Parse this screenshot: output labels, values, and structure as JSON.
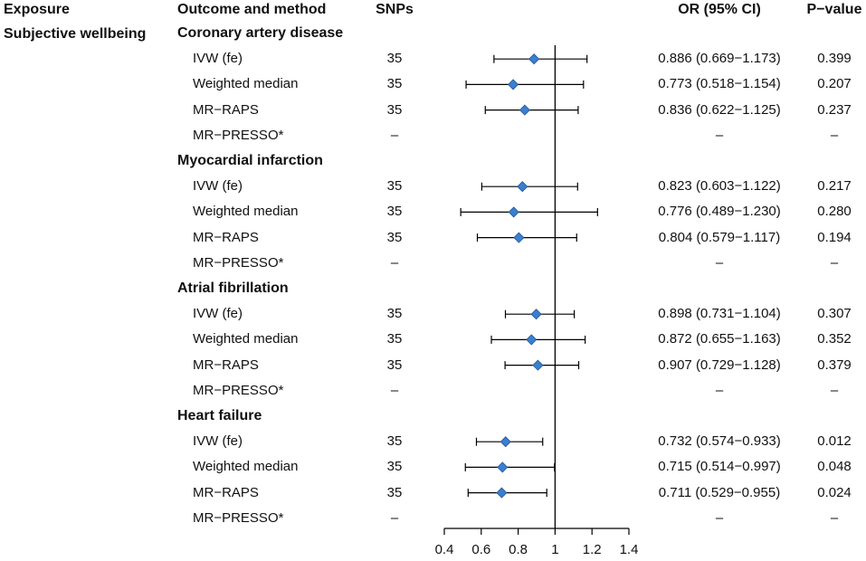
{
  "headers": {
    "exposure": "Exposure",
    "outcome": "Outcome and method",
    "snps": "SNPs",
    "or": "OR (95% CI)",
    "pvalue": "P−value"
  },
  "exposure": "Subjective wellbeing",
  "chart_data": {
    "type": "forest",
    "xlim": [
      0.4,
      1.4
    ],
    "reference_line": 1,
    "x_ticks": [
      "0.4",
      "0.6",
      "0.8",
      "1",
      "1.2",
      "1.4"
    ],
    "groups": [
      {
        "outcome": "Coronary artery disease",
        "rows": [
          {
            "method": "IVW (fe)",
            "snps": "35",
            "or": 0.886,
            "lo": 0.669,
            "hi": 1.173,
            "or_text": "0.886 (0.669−1.173)",
            "p": "0.399"
          },
          {
            "method": "Weighted median",
            "snps": "35",
            "or": 0.773,
            "lo": 0.518,
            "hi": 1.154,
            "or_text": "0.773 (0.518−1.154)",
            "p": "0.207"
          },
          {
            "method": "MR−RAPS",
            "snps": "35",
            "or": 0.836,
            "lo": 0.622,
            "hi": 1.125,
            "or_text": "0.836 (0.622−1.125)",
            "p": "0.237"
          },
          {
            "method": "MR−PRESSO*",
            "snps": "–",
            "or": null,
            "lo": null,
            "hi": null,
            "or_text": "–",
            "p": "–"
          }
        ]
      },
      {
        "outcome": "Myocardial infarction",
        "rows": [
          {
            "method": "IVW (fe)",
            "snps": "35",
            "or": 0.823,
            "lo": 0.603,
            "hi": 1.122,
            "or_text": "0.823 (0.603−1.122)",
            "p": "0.217"
          },
          {
            "method": "Weighted median",
            "snps": "35",
            "or": 0.776,
            "lo": 0.489,
            "hi": 1.23,
            "or_text": "0.776 (0.489−1.230)",
            "p": "0.280"
          },
          {
            "method": "MR−RAPS",
            "snps": "35",
            "or": 0.804,
            "lo": 0.579,
            "hi": 1.117,
            "or_text": "0.804 (0.579−1.117)",
            "p": "0.194"
          },
          {
            "method": "MR−PRESSO*",
            "snps": "–",
            "or": null,
            "lo": null,
            "hi": null,
            "or_text": "–",
            "p": "–"
          }
        ]
      },
      {
        "outcome": "Atrial fibrillation",
        "rows": [
          {
            "method": "IVW (fe)",
            "snps": "35",
            "or": 0.898,
            "lo": 0.731,
            "hi": 1.104,
            "or_text": "0.898 (0.731−1.104)",
            "p": "0.307"
          },
          {
            "method": "Weighted median",
            "snps": "35",
            "or": 0.872,
            "lo": 0.655,
            "hi": 1.163,
            "or_text": "0.872 (0.655−1.163)",
            "p": "0.352"
          },
          {
            "method": "MR−RAPS",
            "snps": "35",
            "or": 0.907,
            "lo": 0.729,
            "hi": 1.128,
            "or_text": "0.907 (0.729−1.128)",
            "p": "0.379"
          },
          {
            "method": "MR−PRESSO*",
            "snps": "–",
            "or": null,
            "lo": null,
            "hi": null,
            "or_text": "–",
            "p": "–"
          }
        ]
      },
      {
        "outcome": "Heart failure",
        "rows": [
          {
            "method": "IVW (fe)",
            "snps": "35",
            "or": 0.732,
            "lo": 0.574,
            "hi": 0.933,
            "or_text": "0.732 (0.574−0.933)",
            "p": "0.012"
          },
          {
            "method": "Weighted median",
            "snps": "35",
            "or": 0.715,
            "lo": 0.514,
            "hi": 0.997,
            "or_text": "0.715 (0.514−0.997)",
            "p": "0.048"
          },
          {
            "method": "MR−RAPS",
            "snps": "35",
            "or": 0.711,
            "lo": 0.529,
            "hi": 0.955,
            "or_text": "0.711 (0.529−0.955)",
            "p": "0.024"
          },
          {
            "method": "MR−PRESSO*",
            "snps": "–",
            "or": null,
            "lo": null,
            "hi": null,
            "or_text": "–",
            "p": "–"
          }
        ]
      }
    ],
    "colors": {
      "marker": "#3a7fd0",
      "marker_edge": "#24548f",
      "line": "#000000"
    }
  }
}
